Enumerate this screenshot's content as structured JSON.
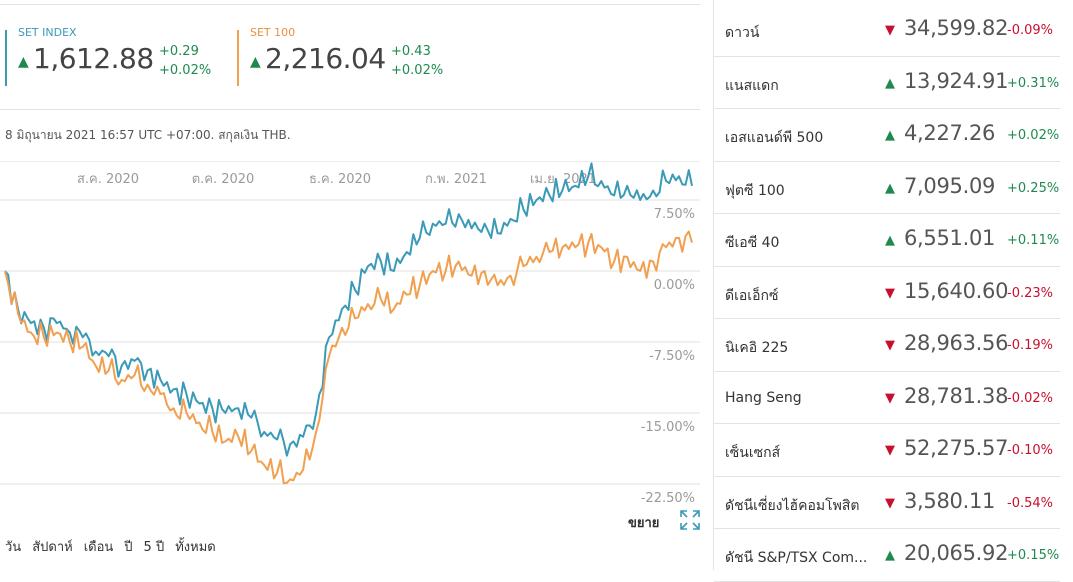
{
  "tickers": [
    {
      "name": "SET INDEX",
      "price": "1,612.88",
      "change": "+0.29",
      "percent": "+0.02%",
      "color": "#3a9ab8"
    },
    {
      "name": "SET 100",
      "price": "2,216.04",
      "change": "+0.43",
      "percent": "+0.02%",
      "color": "#f0a050"
    }
  ],
  "asof": "8 มิถุนายน 2021 16:57 UTC +07:00. สกุลเงิน THB.",
  "chart_data": {
    "type": "line",
    "x_ticks": [
      "ส.ค. 2020",
      "ต.ค. 2020",
      "ธ.ค. 2020",
      "ก.พ. 2021",
      "เม.ย. 2021"
    ],
    "y_ticks": [
      "7.50%",
      "0.00%",
      "-7.50%",
      "-15.00%",
      "-22.50%"
    ],
    "ylim": [
      -22.5,
      7.5
    ],
    "series": [
      {
        "name": "SET INDEX",
        "color": "#3a9ab8",
        "values": [
          0,
          -4,
          -5.5,
          -6,
          -5.5,
          -6.5,
          -7,
          -8.5,
          -9,
          -10,
          -9.5,
          -10.5,
          -11.5,
          -12.5,
          -13,
          -14,
          -14.5,
          -15,
          -14.5,
          -15.5,
          -17,
          -17.8,
          -18.3,
          -17.5,
          -15,
          -7,
          -4,
          -2,
          0.5,
          1,
          0,
          2,
          3.5,
          5,
          5,
          6,
          4.5,
          5,
          4,
          5.5,
          6.5,
          7.5,
          8,
          8.5,
          9,
          10,
          9.5,
          8,
          9,
          7.5,
          8.5,
          9.5,
          10,
          9
        ]
      },
      {
        "name": "SET 100",
        "color": "#f0a050",
        "values": [
          0,
          -4.5,
          -6.5,
          -7,
          -6.5,
          -7.5,
          -8,
          -10,
          -10.5,
          -11.5,
          -11,
          -12,
          -13,
          -14.5,
          -15,
          -16,
          -17,
          -18,
          -17.5,
          -19,
          -20.5,
          -21.3,
          -22,
          -21,
          -17,
          -9,
          -6,
          -5,
          -3.5,
          -3,
          -4,
          -2.5,
          -1.5,
          0,
          0,
          1,
          -0.5,
          0,
          -1.5,
          -0.5,
          0.5,
          1.5,
          2,
          2.5,
          2.5,
          3,
          2.5,
          1,
          1.5,
          0,
          1,
          2.5,
          3.5,
          3
        ]
      }
    ],
    "grid": true,
    "legend": "none"
  },
  "expand_label": "ขยาย",
  "ranges": [
    "วัน",
    "สัปดาห์",
    "เดือน",
    "ปี",
    "5 ปี",
    "ทั้งหมด"
  ],
  "indices": [
    {
      "name": "ดาวน์",
      "value": "34,599.82",
      "change": "-0.09%",
      "dir": "down"
    },
    {
      "name": "แนสแดก",
      "value": "13,924.91",
      "change": "+0.31%",
      "dir": "up"
    },
    {
      "name": "เอสแอนด์พี 500",
      "value": "4,227.26",
      "change": "+0.02%",
      "dir": "up"
    },
    {
      "name": "ฟุตซี 100",
      "value": "7,095.09",
      "change": "+0.25%",
      "dir": "up"
    },
    {
      "name": "ซีเอซี 40",
      "value": "6,551.01",
      "change": "+0.11%",
      "dir": "up"
    },
    {
      "name": "ดีเอเอ็กซ์",
      "value": "15,640.60",
      "change": "-0.23%",
      "dir": "down"
    },
    {
      "name": "นิเคอิ 225",
      "value": "28,963.56",
      "change": "-0.19%",
      "dir": "down"
    },
    {
      "name": "Hang Seng",
      "value": "28,781.38",
      "change": "-0.02%",
      "dir": "down"
    },
    {
      "name": "เซ็นเซกส์",
      "value": "52,275.57",
      "change": "-0.10%",
      "dir": "down"
    },
    {
      "name": "ดัชนีเซี่ยงไฮ้คอมโพสิต",
      "value": "3,580.11",
      "change": "-0.54%",
      "dir": "down"
    },
    {
      "name": "ดัชนี S&P/TSX Com...",
      "value": "20,065.92",
      "change": "+0.15%",
      "dir": "up"
    }
  ],
  "colors": {
    "up": "#1e8a4f",
    "down": "#c8102e",
    "grid": "#e0e0e0"
  }
}
